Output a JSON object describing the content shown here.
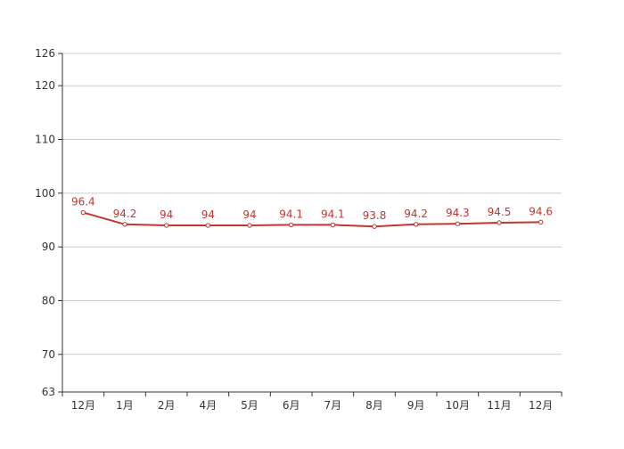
{
  "chart_data": {
    "type": "line",
    "title": "",
    "xlabel": "",
    "ylabel": "",
    "categories": [
      "12月",
      "1月",
      "2月",
      "4月",
      "5月",
      "6月",
      "7月",
      "8月",
      "9月",
      "10月",
      "11月",
      "12月"
    ],
    "series": [
      {
        "values": [
          96.4,
          94.2,
          94,
          94,
          94,
          94.1,
          94.1,
          93.8,
          94.2,
          94.3,
          94.5,
          94.6
        ]
      }
    ],
    "ylim": [
      63,
      126
    ],
    "yticks": [
      63,
      70,
      80,
      90,
      100,
      110,
      120,
      126
    ],
    "data_labels": true,
    "grid": true,
    "legend": "none",
    "colors": {
      "line": "#c23531",
      "label": "#c23531",
      "grid": "#cccccc",
      "axis": "#333333",
      "tick_text": "#333333"
    }
  }
}
